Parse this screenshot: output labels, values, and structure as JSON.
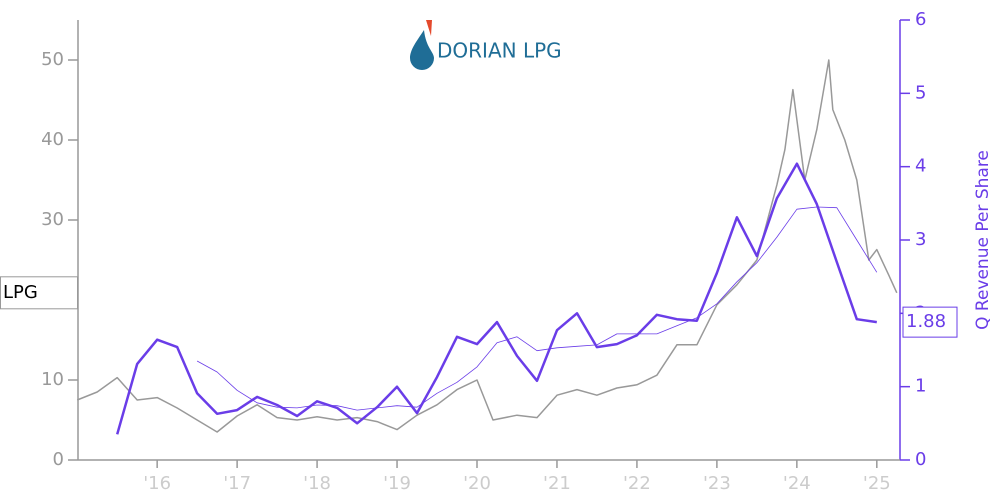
{
  "logo_text": "DORIAN LPG",
  "chart_data": {
    "type": "line",
    "y2label": "Q Revenue Per Share",
    "xlim": [
      2015.01,
      2025.29
    ],
    "xticks": [
      {
        "value": 2016,
        "label": "'16"
      },
      {
        "value": 2017,
        "label": "'17"
      },
      {
        "value": 2018,
        "label": "'18"
      },
      {
        "value": 2019,
        "label": "'19"
      },
      {
        "value": 2020,
        "label": "'20"
      },
      {
        "value": 2021,
        "label": "'21"
      },
      {
        "value": 2022,
        "label": "'22"
      },
      {
        "value": 2023,
        "label": "'23"
      },
      {
        "value": 2024,
        "label": "'24"
      },
      {
        "value": 2025,
        "label": "'25"
      }
    ],
    "ylim": [
      0,
      55
    ],
    "yticks": [
      0,
      10,
      20,
      30,
      40,
      50
    ],
    "y2lim": [
      0,
      6
    ],
    "y2ticks": [
      0,
      1,
      2,
      3,
      4,
      5,
      6
    ],
    "series": [
      {
        "name": "LPG",
        "color": "#999999",
        "axis": "y",
        "width": 1.5,
        "x": [
          2015.0,
          2015.25,
          2015.5,
          2015.75,
          2016.0,
          2016.25,
          2016.5,
          2016.75,
          2017.0,
          2017.25,
          2017.5,
          2017.75,
          2018.0,
          2018.25,
          2018.5,
          2018.75,
          2019.0,
          2019.25,
          2019.5,
          2019.75,
          2020.0,
          2020.1,
          2020.2,
          2020.5,
          2020.75,
          2021.0,
          2021.25,
          2021.5,
          2021.75,
          2022.0,
          2022.25,
          2022.5,
          2022.75,
          2023.0,
          2023.25,
          2023.5,
          2023.75,
          2023.85,
          2023.95,
          2024.0,
          2024.1,
          2024.25,
          2024.4,
          2024.45,
          2024.6,
          2024.75,
          2024.9,
          2025.0,
          2025.15,
          2025.25
        ],
        "values": [
          7.5,
          8.5,
          10.3,
          7.5,
          7.8,
          6.5,
          5.0,
          3.5,
          5.5,
          6.9,
          5.3,
          5.0,
          5.4,
          5.0,
          5.3,
          4.8,
          3.8,
          5.6,
          6.9,
          8.8,
          10.0,
          7.5,
          5.0,
          5.6,
          5.3,
          8.1,
          8.8,
          8.1,
          9.0,
          9.4,
          10.6,
          14.4,
          14.4,
          19.4,
          21.9,
          25.0,
          34.4,
          38.8,
          46.3,
          42.5,
          35.0,
          41.3,
          50.0,
          43.8,
          40.0,
          35.0,
          25.0,
          26.3,
          23.1,
          20.9
        ]
      },
      {
        "name": "Q Revenue Per Share",
        "color": "#6a3de8",
        "axis": "y2",
        "width": 2.5,
        "x": [
          2015.5,
          2015.75,
          2016.0,
          2016.25,
          2016.5,
          2016.75,
          2017.0,
          2017.25,
          2017.5,
          2017.75,
          2018.0,
          2018.25,
          2018.5,
          2018.75,
          2019.0,
          2019.25,
          2019.5,
          2019.75,
          2020.0,
          2020.25,
          2020.5,
          2020.75,
          2021.0,
          2021.25,
          2021.5,
          2021.75,
          2022.0,
          2022.25,
          2022.5,
          2022.75,
          2023.0,
          2023.25,
          2023.5,
          2023.75,
          2024.0,
          2024.25,
          2024.5,
          2024.75,
          2025.0
        ],
        "values": [
          0.35,
          1.31,
          1.64,
          1.54,
          0.91,
          0.63,
          0.68,
          0.86,
          0.75,
          0.6,
          0.8,
          0.71,
          0.5,
          0.72,
          1.0,
          0.64,
          1.13,
          1.68,
          1.58,
          1.88,
          1.42,
          1.08,
          1.77,
          2.0,
          1.54,
          1.58,
          1.7,
          1.98,
          1.92,
          1.9,
          2.55,
          3.31,
          2.78,
          3.57,
          4.04,
          3.49,
          2.7,
          1.92,
          1.88
        ]
      },
      {
        "color": "#6a3de8",
        "axis": "y2",
        "width": 0.8,
        "x": [
          2015.5,
          2015.75,
          2016.0,
          2016.25,
          2016.5,
          2016.75,
          2017.0,
          2017.25,
          2017.5,
          2017.75,
          2018.0,
          2018.25,
          2018.5,
          2018.75,
          2019.0,
          2019.25,
          2019.5,
          2019.75,
          2020.0,
          2020.25,
          2020.5,
          2020.75,
          2021.0,
          2021.25,
          2021.5,
          2021.75,
          2022.0,
          2022.25,
          2022.5,
          2022.75,
          2023.0,
          2023.25,
          2023.5,
          2023.75,
          2024.0,
          2024.25,
          2024.5,
          2024.75,
          2025.0
        ],
        "values": [
          null,
          null,
          null,
          null,
          1.35,
          1.2,
          0.95,
          0.78,
          0.72,
          0.71,
          0.75,
          0.74,
          0.68,
          0.71,
          0.74,
          0.72,
          0.91,
          1.06,
          1.27,
          1.6,
          1.68,
          1.49,
          1.53,
          1.55,
          1.57,
          1.72,
          1.72,
          1.72,
          1.83,
          1.94,
          2.13,
          2.43,
          2.69,
          3.04,
          3.42,
          3.45,
          3.44,
          3.0,
          2.56
        ]
      }
    ]
  }
}
